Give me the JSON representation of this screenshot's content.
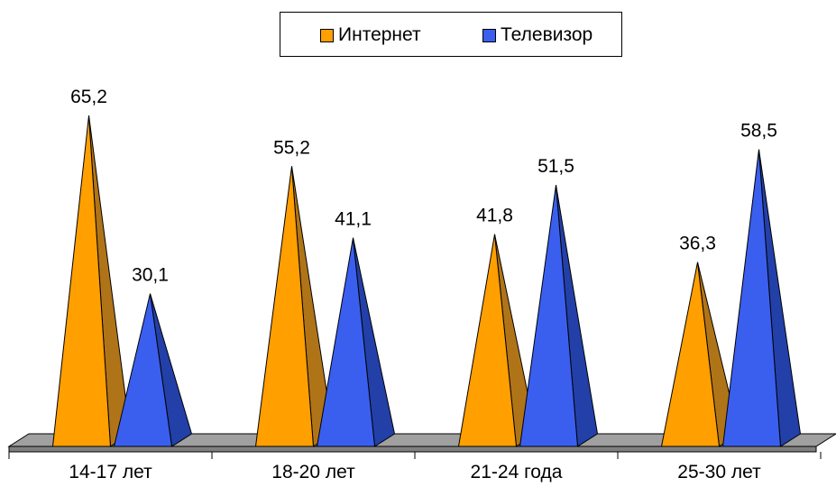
{
  "chart_data": {
    "type": "bar",
    "style": "3d-pyramid",
    "categories": [
      "14-17 лет",
      "18-20 лет",
      "21-24 года",
      "25-30 лет"
    ],
    "series": [
      {
        "name": "Интернет",
        "values": [
          65.2,
          55.2,
          41.8,
          36.3
        ],
        "labels": [
          "65,2",
          "55,2",
          "41,8",
          "36,3"
        ],
        "color": "#ff9f00",
        "shade": "#b07418"
      },
      {
        "name": "Телевизор",
        "values": [
          30.1,
          41.1,
          51.5,
          58.5
        ],
        "labels": [
          "30,1",
          "41,1",
          "51,5",
          "58,5"
        ],
        "color": "#3a5fef",
        "shade": "#2240a8"
      }
    ],
    "ylim": [
      0,
      70
    ],
    "grid": false,
    "legend_position": "top-center",
    "floor_color": "#a0a0a0"
  }
}
